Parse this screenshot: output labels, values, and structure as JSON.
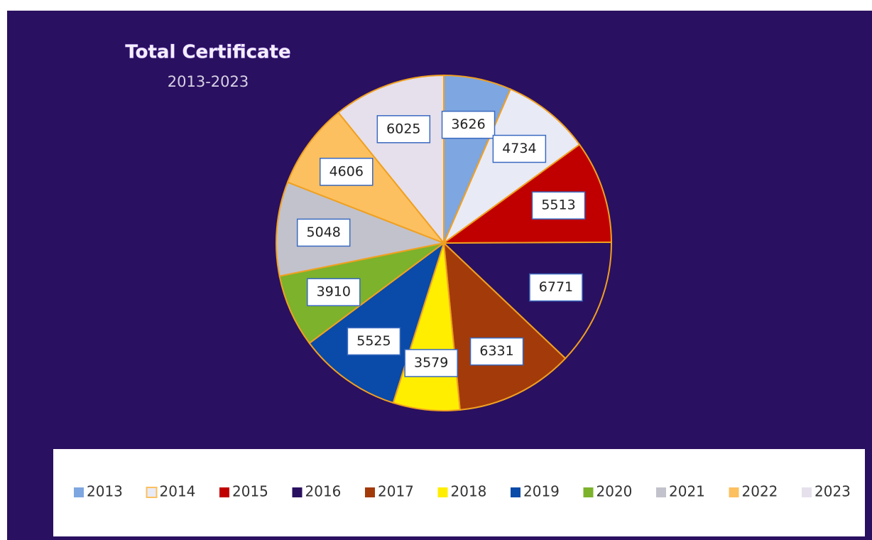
{
  "chart_data": {
    "type": "pie",
    "title": "Total Certificate",
    "subtitle": "2013-2023",
    "categories": [
      "2013",
      "2014",
      "2015",
      "2016",
      "2017",
      "2018",
      "2019",
      "2020",
      "2021",
      "2022",
      "2023"
    ],
    "values": [
      3626,
      4734,
      5513,
      6771,
      6331,
      3579,
      5525,
      3910,
      5048,
      4606,
      6025
    ],
    "colors": [
      "#7ea6e0",
      "#e8eaf6",
      "#c00000",
      "#2a1060",
      "#a33a0a",
      "#ffee00",
      "#0a4aa8",
      "#7cb22c",
      "#c2c2cc",
      "#fcc060",
      "#e6e0ec"
    ],
    "legend": "bottom"
  }
}
